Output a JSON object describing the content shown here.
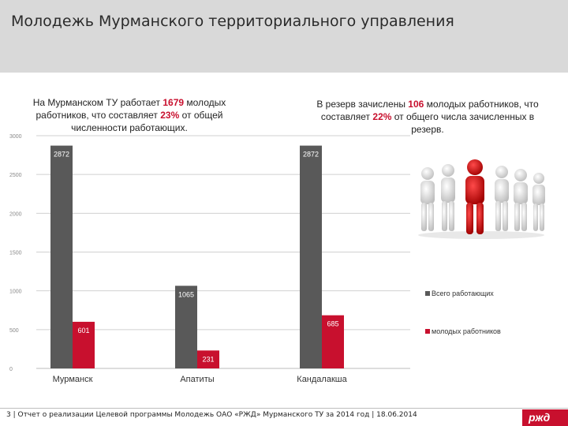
{
  "title": "Молодежь Мурманского территориального управления",
  "left_text": {
    "p1": "На Мурманском ТУ работает ",
    "v1": "1679",
    "p2": " молодых работников, что составляет ",
    "v2": "23%",
    "p3": " от общей численности работающих."
  },
  "right_text": {
    "p1": "В резерв зачислены ",
    "v1": "106",
    "p2": " молодых работников, что составляет ",
    "v2": "22%",
    "p3": " от общего числа зачисленных в резерв."
  },
  "chart_data": {
    "type": "bar",
    "categories": [
      "Мурманск",
      "Апатиты",
      "Кандалакша"
    ],
    "series": [
      {
        "name": "Всего работающих",
        "values": [
          2872,
          1065,
          2872
        ],
        "labels": [
          "2872",
          "1065",
          "2872"
        ],
        "color": "#595959"
      },
      {
        "name": "молодых работников",
        "values": [
          601,
          231,
          685
        ],
        "labels": [
          "601",
          "231",
          "685"
        ],
        "color": "#c8102e"
      }
    ],
    "y_ticks": [
      0,
      500,
      1000,
      1500,
      2000,
      2500,
      3000
    ],
    "y_tick_labels": [
      "0",
      "500",
      "1000",
      "1500",
      "2000",
      "2500",
      "3000"
    ],
    "ylim": [
      0,
      3000
    ]
  },
  "footer": "3 | Отчет о реализации Целевой программы Молодежь ОАО «РЖД» Мурманского ТУ за 2014 год | 18.06.2014",
  "logo_text": "ржд",
  "colors": {
    "accent": "#c8102e",
    "header_bg": "#d9d9d9",
    "bar_total": "#595959"
  }
}
